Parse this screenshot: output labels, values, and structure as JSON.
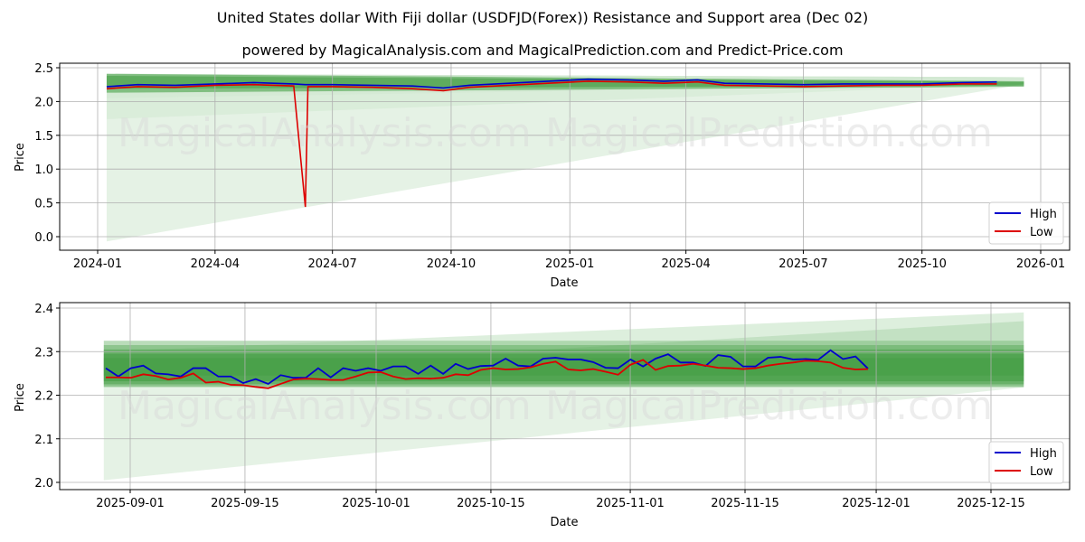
{
  "header": {
    "title": "United States dollar With Fiji dollar (USDFJD(Forex)) Resistance and Support area (Dec 02)",
    "subtitle": "powered by MagicalAnalysis.com and MagicalPrediction.com and Predict-Price.com"
  },
  "watermarks": [
    "MagicalAnalysis.com",
    "MagicalPrediction.com"
  ],
  "colors": {
    "high": "#0000cc",
    "low": "#dd0000",
    "band_dark": "#3c9a3c",
    "band_light": "#cfe8cf",
    "grid": "#b0b0b0"
  },
  "chart_data": [
    {
      "type": "line",
      "title": "Full history",
      "xlabel": "Date",
      "ylabel": "Price",
      "ylim": [
        -0.2,
        2.55
      ],
      "grid": true,
      "legend_position": "lower right",
      "yticks": [
        "0.0",
        "0.5",
        "1.0",
        "1.5",
        "2.0",
        "2.5"
      ],
      "xticks": [
        "2024-01",
        "2024-04",
        "2024-07",
        "2024-10",
        "2025-01",
        "2025-04",
        "2025-07",
        "2025-10",
        "2026-01"
      ],
      "legend": [
        "High",
        "Low"
      ],
      "x": [
        "2024-01-08",
        "2024-02-01",
        "2024-03-01",
        "2024-04-01",
        "2024-05-01",
        "2024-06-01",
        "2024-06-10",
        "2024-06-12",
        "2024-06-14",
        "2024-07-01",
        "2024-08-01",
        "2024-09-01",
        "2024-09-25",
        "2024-10-15",
        "2024-11-15",
        "2024-12-15",
        "2025-01-15",
        "2025-02-15",
        "2025-03-15",
        "2025-04-10",
        "2025-05-01",
        "2025-06-01",
        "2025-07-01",
        "2025-08-01",
        "2025-09-01",
        "2025-10-01",
        "2025-11-01",
        "2025-11-28"
      ],
      "series": [
        {
          "name": "High",
          "values": [
            2.22,
            2.25,
            2.24,
            2.26,
            2.28,
            2.26,
            2.25,
            2.25,
            2.25,
            2.25,
            2.24,
            2.23,
            2.2,
            2.24,
            2.27,
            2.3,
            2.33,
            2.32,
            2.3,
            2.32,
            2.27,
            2.26,
            2.25,
            2.26,
            2.26,
            2.26,
            2.28,
            2.29
          ]
        },
        {
          "name": "Low",
          "values": [
            2.19,
            2.22,
            2.21,
            2.24,
            2.25,
            2.23,
            0.44,
            2.22,
            2.22,
            2.22,
            2.21,
            2.19,
            2.16,
            2.21,
            2.24,
            2.27,
            2.3,
            2.29,
            2.27,
            2.29,
            2.24,
            2.23,
            2.22,
            2.23,
            2.24,
            2.24,
            2.26,
            2.26
          ]
        }
      ],
      "bands": {
        "resistance_top": 2.41,
        "support_start": [
          1.74,
          2.05,
          2.17,
          -0.07
        ],
        "support_end": 2.26,
        "forecast_end": "2025-12-19",
        "forecast_top": 2.36
      }
    },
    {
      "type": "line",
      "title": "Recent detail",
      "xlabel": "Date",
      "ylabel": "Price",
      "ylim": [
        1.985,
        2.41
      ],
      "grid": true,
      "legend_position": "lower right",
      "yticks": [
        "2.0",
        "2.1",
        "2.2",
        "2.3",
        "2.4"
      ],
      "xticks": [
        "2025-09-01",
        "2025-09-15",
        "2025-10-01",
        "2025-10-15",
        "2025-11-01",
        "2025-11-15",
        "2025-12-01",
        "2025-12-15"
      ],
      "legend": [
        "High",
        "Low"
      ],
      "x": [
        "2025-08-29",
        "2025-09-01",
        "2025-09-02",
        "2025-09-03",
        "2025-09-04",
        "2025-09-05",
        "2025-09-08",
        "2025-09-09",
        "2025-09-10",
        "2025-09-11",
        "2025-09-12",
        "2025-09-15",
        "2025-09-16",
        "2025-09-17",
        "2025-09-18",
        "2025-09-19",
        "2025-09-22",
        "2025-09-23",
        "2025-09-24",
        "2025-09-25",
        "2025-09-26",
        "2025-09-29",
        "2025-09-30",
        "2025-10-01",
        "2025-10-03",
        "2025-10-06",
        "2025-10-07",
        "2025-10-08",
        "2025-10-09",
        "2025-10-10",
        "2025-10-13",
        "2025-10-15",
        "2025-10-17",
        "2025-10-20",
        "2025-10-21",
        "2025-10-23",
        "2025-10-24",
        "2025-10-27",
        "2025-10-28",
        "2025-10-29",
        "2025-10-30",
        "2025-10-31",
        "2025-11-03",
        "2025-11-04",
        "2025-11-05",
        "2025-11-06",
        "2025-11-07",
        "2025-11-10",
        "2025-11-11",
        "2025-11-12",
        "2025-11-13",
        "2025-11-14",
        "2025-11-17",
        "2025-11-18",
        "2025-11-19",
        "2025-11-20",
        "2025-11-21",
        "2025-11-24",
        "2025-11-25",
        "2025-11-26",
        "2025-11-27",
        "2025-11-28"
      ],
      "series": [
        {
          "name": "High",
          "values": [
            2.262,
            2.243,
            2.262,
            2.268,
            2.25,
            2.248,
            2.243,
            2.262,
            2.262,
            2.243,
            2.243,
            2.228,
            2.237,
            2.226,
            2.246,
            2.24,
            2.24,
            2.262,
            2.241,
            2.262,
            2.256,
            2.262,
            2.256,
            2.266,
            2.266,
            2.249,
            2.268,
            2.249,
            2.272,
            2.26,
            2.267,
            2.268,
            2.284,
            2.268,
            2.266,
            2.284,
            2.286,
            2.282,
            2.282,
            2.276,
            2.263,
            2.262,
            2.282,
            2.266,
            2.284,
            2.294,
            2.275,
            2.275,
            2.267,
            2.292,
            2.288,
            2.266,
            2.266,
            2.286,
            2.288,
            2.282,
            2.283,
            2.281,
            2.303,
            2.283,
            2.289,
            2.261
          ]
        },
        {
          "name": "Low",
          "values": [
            2.241,
            2.241,
            2.24,
            2.248,
            2.244,
            2.236,
            2.24,
            2.25,
            2.229,
            2.231,
            2.224,
            2.223,
            2.219,
            2.216,
            2.226,
            2.236,
            2.238,
            2.237,
            2.235,
            2.235,
            2.243,
            2.252,
            2.253,
            2.243,
            2.237,
            2.239,
            2.238,
            2.24,
            2.248,
            2.246,
            2.258,
            2.262,
            2.259,
            2.26,
            2.264,
            2.272,
            2.277,
            2.259,
            2.257,
            2.26,
            2.254,
            2.247,
            2.27,
            2.281,
            2.258,
            2.267,
            2.268,
            2.272,
            2.268,
            2.263,
            2.262,
            2.26,
            2.262,
            2.268,
            2.272,
            2.275,
            2.279,
            2.278,
            2.275,
            2.263,
            2.259,
            2.26
          ]
        }
      ],
      "bands": {
        "resistance_top": 2.325,
        "resistance_inner": 2.3,
        "support": 2.218,
        "light_support_start": 2.005,
        "forecast_end": "2025-12-19",
        "forecast_top": 2.39
      }
    }
  ]
}
